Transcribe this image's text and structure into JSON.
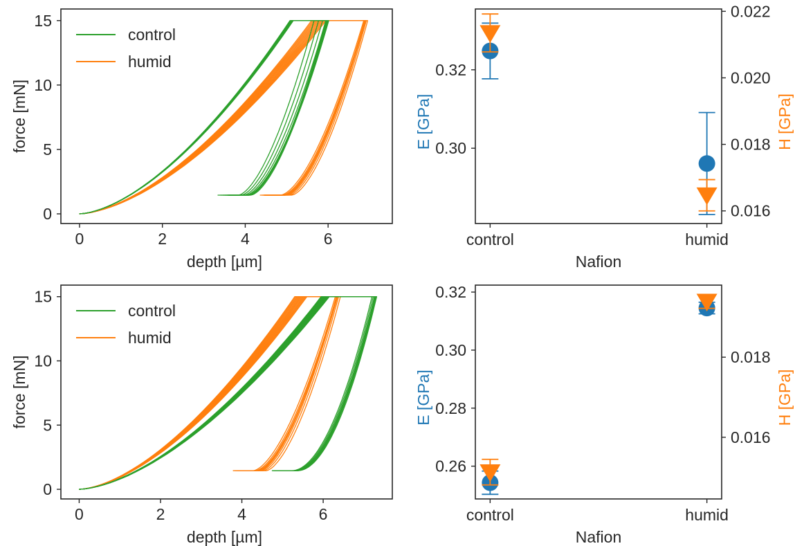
{
  "colors": {
    "green": "#2ca02c",
    "orange": "#ff7f0e",
    "blue": "#1f77b4",
    "text": "#262626",
    "axis": "#262626"
  },
  "chart_data": [
    {
      "id": "curves_top",
      "type": "line",
      "xlabel": "depth [µm]",
      "ylabel": "force [mN]",
      "xlim": [
        -0.45,
        7.55
      ],
      "ylim": [
        -0.75,
        15.9
      ],
      "xticks": [
        0,
        2,
        4,
        6
      ],
      "yticks": [
        0,
        5,
        10,
        15
      ],
      "legend": {
        "position": "top-left",
        "entries": [
          "control",
          "humid"
        ]
      },
      "series": [
        {
          "name": "control",
          "color_key": "green",
          "count": 12,
          "load_end_x": [
            5.08,
            5.16
          ],
          "unload_end_x": [
            3.75,
            4.3
          ],
          "hold_end_x": [
            5.5,
            6.3
          ],
          "unload_curve_power": 1.6
        },
        {
          "name": "humid",
          "color_key": "orange",
          "count": 12,
          "load_end_x": [
            5.6,
            5.95
          ],
          "unload_end_x": [
            4.7,
            5.25
          ],
          "hold_end_x": [
            6.75,
            7.05
          ],
          "unload_curve_power": 1.6
        }
      ]
    },
    {
      "id": "props_top",
      "type": "scatter",
      "xlabel": "Nafion",
      "ylabel": "E [GPa]",
      "y2label": "H [GPa]",
      "categories": [
        "control",
        "humid"
      ],
      "ylim": [
        0.2808,
        0.3355
      ],
      "y2lim": [
        0.01562,
        0.02207
      ],
      "yticks": [
        0.3,
        0.32
      ],
      "y2ticks": [
        0.016,
        0.018,
        0.02,
        0.022
      ],
      "series": [
        {
          "name": "E",
          "axis": "left",
          "marker": "circle",
          "color_key": "blue",
          "values": [
            0.3248,
            0.2961
          ],
          "err": [
            0.0071,
            0.013
          ]
        },
        {
          "name": "H",
          "axis": "right",
          "marker": "triangle-down",
          "color_key": "orange",
          "values": [
            0.02135,
            0.01647
          ],
          "err": [
            0.00057,
            0.00047
          ]
        }
      ]
    },
    {
      "id": "curves_bottom",
      "type": "line",
      "xlabel": "depth [µm]",
      "ylabel": "force [mN]",
      "xlim": [
        -0.45,
        7.7
      ],
      "ylim": [
        -0.75,
        15.9
      ],
      "xticks": [
        0,
        2,
        4,
        6
      ],
      "yticks": [
        0,
        5,
        10,
        15
      ],
      "legend": {
        "position": "top-left",
        "entries": [
          "control",
          "humid"
        ]
      },
      "series": [
        {
          "name": "control",
          "color_key": "green",
          "count": 14,
          "load_end_x": [
            5.95,
            6.15
          ],
          "unload_end_x": [
            5.2,
            5.45
          ],
          "hold_end_x": [
            7.15,
            7.4
          ],
          "unload_curve_power": 1.9
        },
        {
          "name": "humid",
          "color_key": "orange",
          "count": 12,
          "load_end_x": [
            5.3,
            5.6
          ],
          "unload_end_x": [
            4.1,
            4.75
          ],
          "hold_end_x": [
            6.15,
            6.55
          ],
          "unload_curve_power": 1.6
        }
      ]
    },
    {
      "id": "props_bottom",
      "type": "scatter",
      "xlabel": "Nafion",
      "ylabel": "E [GPa]",
      "y2label": "H [GPa]",
      "categories": [
        "control",
        "humid"
      ],
      "ylim": [
        0.2487,
        0.3224
      ],
      "y2lim": [
        0.01446,
        0.0198
      ],
      "yticks": [
        0.26,
        0.28,
        0.3,
        0.32
      ],
      "y2ticks": [
        0.016,
        0.018
      ],
      "series": [
        {
          "name": "E",
          "axis": "left",
          "marker": "circle",
          "color_key": "blue",
          "values": [
            0.2543,
            0.3145
          ],
          "err": [
            0.004,
            0.002
          ]
        },
        {
          "name": "H",
          "axis": "right",
          "marker": "triangle-down",
          "color_key": "orange",
          "values": [
            0.01513,
            0.01939
          ],
          "err": [
            0.00032,
            0.00017
          ]
        }
      ]
    }
  ]
}
